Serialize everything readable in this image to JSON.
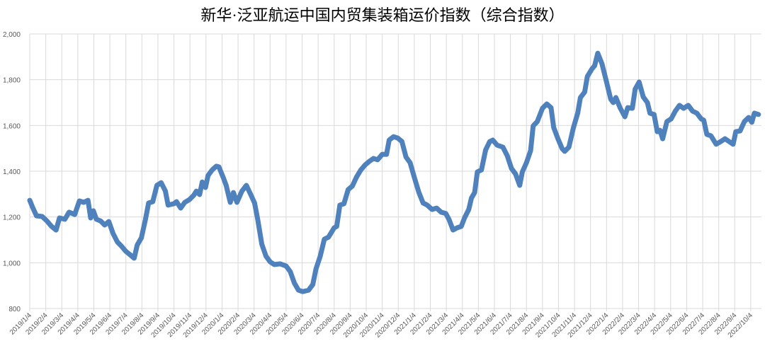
{
  "chart_data": {
    "type": "line",
    "title": "新华·泛亚航运中国内贸集装箱运价指数（综合指数）",
    "xlabel": "",
    "ylabel": "",
    "ylim": [
      800,
      2000
    ],
    "yticks": [
      800,
      1000,
      1200,
      1400,
      1600,
      1800,
      2000
    ],
    "ytick_labels": [
      "800",
      "1,000",
      "1,200",
      "1,400",
      "1,600",
      "1,800",
      "2,000"
    ],
    "xtick_labels": [
      "2019/1/4",
      "2019/2/4",
      "2019/3/4",
      "2019/4/4",
      "2019/5/4",
      "2019/6/4",
      "2019/7/4",
      "2019/8/4",
      "2019/9/4",
      "2019/10/4",
      "2019/11/4",
      "2019/12/4",
      "2020/1/4",
      "2020/2/4",
      "2020/3/4",
      "2020/4/4",
      "2020/5/4",
      "2020/6/4",
      "2020/7/4",
      "2020/8/4",
      "2020/9/4",
      "2020/10/4",
      "2020/11/4",
      "2020/12/4",
      "2021/1/4",
      "2021/2/4",
      "2021/3/4",
      "2021/4/4",
      "2021/5/4",
      "2021/6/4",
      "2021/7/4",
      "2021/8/4",
      "2021/9/4",
      "2021/10/4",
      "2021/11/4",
      "2021/12/4",
      "2022/1/4",
      "2022/2/4",
      "2022/3/4",
      "2022/4/4",
      "2022/5/4",
      "2022/6/4",
      "2022/7/4",
      "2022/8/4",
      "2022/9/4",
      "2022/10/4"
    ],
    "grid": true,
    "legend": "none",
    "line_color": "#4f81bd",
    "grid_color": "#d9d9d9",
    "points": [
      [
        "2019-01-04",
        1273
      ],
      [
        "2019-01-09",
        1245
      ],
      [
        "2019-01-17",
        1205
      ],
      [
        "2019-01-28",
        1202
      ],
      [
        "2019-02-06",
        1183
      ],
      [
        "2019-02-14",
        1159
      ],
      [
        "2019-02-22",
        1143
      ],
      [
        "2019-02-28",
        1196
      ],
      [
        "2019-03-10",
        1190
      ],
      [
        "2019-03-18",
        1221
      ],
      [
        "2019-03-29",
        1211
      ],
      [
        "2019-04-07",
        1270
      ],
      [
        "2019-04-15",
        1264
      ],
      [
        "2019-04-23",
        1273
      ],
      [
        "2019-04-28",
        1196
      ],
      [
        "2019-05-03",
        1227
      ],
      [
        "2019-05-09",
        1190
      ],
      [
        "2019-05-17",
        1183
      ],
      [
        "2019-05-25",
        1165
      ],
      [
        "2019-06-02",
        1180
      ],
      [
        "2019-06-10",
        1128
      ],
      [
        "2019-06-18",
        1091
      ],
      [
        "2019-06-26",
        1072
      ],
      [
        "2019-07-04",
        1050
      ],
      [
        "2019-07-12",
        1035
      ],
      [
        "2019-07-20",
        1020
      ],
      [
        "2019-07-26",
        1078
      ],
      [
        "2019-08-03",
        1109
      ],
      [
        "2019-08-11",
        1190
      ],
      [
        "2019-08-17",
        1261
      ],
      [
        "2019-08-25",
        1267
      ],
      [
        "2019-09-02",
        1338
      ],
      [
        "2019-09-10",
        1350
      ],
      [
        "2019-09-18",
        1313
      ],
      [
        "2019-09-23",
        1252
      ],
      [
        "2019-10-04",
        1258
      ],
      [
        "2019-10-09",
        1267
      ],
      [
        "2019-10-17",
        1239
      ],
      [
        "2019-10-25",
        1264
      ],
      [
        "2019-11-03",
        1276
      ],
      [
        "2019-11-11",
        1295
      ],
      [
        "2019-11-16",
        1313
      ],
      [
        "2019-11-22",
        1298
      ],
      [
        "2019-11-27",
        1353
      ],
      [
        "2019-12-03",
        1329
      ],
      [
        "2019-12-08",
        1381
      ],
      [
        "2019-12-16",
        1406
      ],
      [
        "2019-12-24",
        1422
      ],
      [
        "2019-12-29",
        1419
      ],
      [
        "2020-01-07",
        1369
      ],
      [
        "2020-01-12",
        1338
      ],
      [
        "2020-01-20",
        1264
      ],
      [
        "2020-01-26",
        1307
      ],
      [
        "2020-02-02",
        1264
      ],
      [
        "2020-02-11",
        1313
      ],
      [
        "2020-02-19",
        1338
      ],
      [
        "2020-02-27",
        1298
      ],
      [
        "2020-03-05",
        1261
      ],
      [
        "2020-03-11",
        1190
      ],
      [
        "2020-03-19",
        1081
      ],
      [
        "2020-03-27",
        1029
      ],
      [
        "2020-04-04",
        1004
      ],
      [
        "2020-04-12",
        992
      ],
      [
        "2020-04-23",
        995
      ],
      [
        "2020-05-04",
        986
      ],
      [
        "2020-05-12",
        961
      ],
      [
        "2020-05-20",
        911
      ],
      [
        "2020-05-28",
        880
      ],
      [
        "2020-06-05",
        874
      ],
      [
        "2020-06-16",
        880
      ],
      [
        "2020-06-24",
        905
      ],
      [
        "2020-06-30",
        973
      ],
      [
        "2020-07-08",
        1029
      ],
      [
        "2020-07-16",
        1103
      ],
      [
        "2020-07-24",
        1112
      ],
      [
        "2020-08-04",
        1153
      ],
      [
        "2020-08-09",
        1159
      ],
      [
        "2020-08-15",
        1252
      ],
      [
        "2020-08-23",
        1258
      ],
      [
        "2020-08-31",
        1320
      ],
      [
        "2020-09-08",
        1335
      ],
      [
        "2020-09-16",
        1375
      ],
      [
        "2020-09-24",
        1406
      ],
      [
        "2020-10-02",
        1428
      ],
      [
        "2020-10-10",
        1443
      ],
      [
        "2020-10-18",
        1456
      ],
      [
        "2020-10-26",
        1450
      ],
      [
        "2020-11-04",
        1474
      ],
      [
        "2020-11-12",
        1474
      ],
      [
        "2020-11-17",
        1536
      ],
      [
        "2020-11-25",
        1551
      ],
      [
        "2020-12-03",
        1545
      ],
      [
        "2020-12-11",
        1530
      ],
      [
        "2020-12-19",
        1462
      ],
      [
        "2020-12-27",
        1437
      ],
      [
        "2021-01-05",
        1366
      ],
      [
        "2021-01-13",
        1307
      ],
      [
        "2021-01-21",
        1261
      ],
      [
        "2021-01-29",
        1252
      ],
      [
        "2021-02-07",
        1233
      ],
      [
        "2021-02-15",
        1239
      ],
      [
        "2021-02-23",
        1221
      ],
      [
        "2021-03-03",
        1215
      ],
      [
        "2021-03-09",
        1190
      ],
      [
        "2021-03-17",
        1143
      ],
      [
        "2021-03-25",
        1153
      ],
      [
        "2021-04-02",
        1159
      ],
      [
        "2021-04-08",
        1196
      ],
      [
        "2021-04-16",
        1233
      ],
      [
        "2021-04-21",
        1283
      ],
      [
        "2021-04-27",
        1307
      ],
      [
        "2021-05-02",
        1397
      ],
      [
        "2021-05-10",
        1406
      ],
      [
        "2021-05-18",
        1493
      ],
      [
        "2021-05-26",
        1530
      ],
      [
        "2021-06-01",
        1536
      ],
      [
        "2021-06-09",
        1514
      ],
      [
        "2021-06-20",
        1505
      ],
      [
        "2021-06-28",
        1468
      ],
      [
        "2021-07-06",
        1412
      ],
      [
        "2021-07-14",
        1388
      ],
      [
        "2021-07-22",
        1338
      ],
      [
        "2021-07-27",
        1397
      ],
      [
        "2021-08-04",
        1437
      ],
      [
        "2021-08-12",
        1490
      ],
      [
        "2021-08-17",
        1598
      ],
      [
        "2021-08-25",
        1617
      ],
      [
        "2021-09-04",
        1675
      ],
      [
        "2021-09-12",
        1694
      ],
      [
        "2021-09-20",
        1678
      ],
      [
        "2021-09-25",
        1591
      ],
      [
        "2021-10-03",
        1542
      ],
      [
        "2021-10-11",
        1499
      ],
      [
        "2021-10-16",
        1487
      ],
      [
        "2021-10-24",
        1505
      ],
      [
        "2021-11-02",
        1591
      ],
      [
        "2021-11-10",
        1654
      ],
      [
        "2021-11-15",
        1722
      ],
      [
        "2021-11-23",
        1746
      ],
      [
        "2021-11-28",
        1814
      ],
      [
        "2021-12-07",
        1848
      ],
      [
        "2021-12-12",
        1861
      ],
      [
        "2021-12-18",
        1916
      ],
      [
        "2021-12-26",
        1870
      ],
      [
        "2022-01-04",
        1790
      ],
      [
        "2022-01-12",
        1715
      ],
      [
        "2022-01-17",
        1700
      ],
      [
        "2022-01-22",
        1722
      ],
      [
        "2022-01-30",
        1678
      ],
      [
        "2022-02-08",
        1638
      ],
      [
        "2022-02-13",
        1678
      ],
      [
        "2022-02-21",
        1675
      ],
      [
        "2022-02-26",
        1759
      ],
      [
        "2022-03-05",
        1790
      ],
      [
        "2022-03-13",
        1725
      ],
      [
        "2022-03-21",
        1700
      ],
      [
        "2022-03-26",
        1654
      ],
      [
        "2022-04-03",
        1648
      ],
      [
        "2022-04-09",
        1573
      ],
      [
        "2022-04-14",
        1579
      ],
      [
        "2022-04-19",
        1542
      ],
      [
        "2022-04-27",
        1617
      ],
      [
        "2022-05-05",
        1629
      ],
      [
        "2022-05-13",
        1663
      ],
      [
        "2022-05-21",
        1688
      ],
      [
        "2022-05-29",
        1675
      ],
      [
        "2022-06-07",
        1688
      ],
      [
        "2022-06-15",
        1663
      ],
      [
        "2022-06-23",
        1654
      ],
      [
        "2022-07-01",
        1629
      ],
      [
        "2022-07-06",
        1623
      ],
      [
        "2022-07-12",
        1561
      ],
      [
        "2022-07-20",
        1555
      ],
      [
        "2022-07-30",
        1518
      ],
      [
        "2022-08-08",
        1530
      ],
      [
        "2022-08-16",
        1542
      ],
      [
        "2022-08-24",
        1530
      ],
      [
        "2022-09-01",
        1518
      ],
      [
        "2022-09-06",
        1573
      ],
      [
        "2022-09-14",
        1576
      ],
      [
        "2022-09-22",
        1617
      ],
      [
        "2022-09-30",
        1635
      ],
      [
        "2022-10-06",
        1614
      ],
      [
        "2022-10-11",
        1654
      ],
      [
        "2022-10-19",
        1648
      ]
    ]
  }
}
